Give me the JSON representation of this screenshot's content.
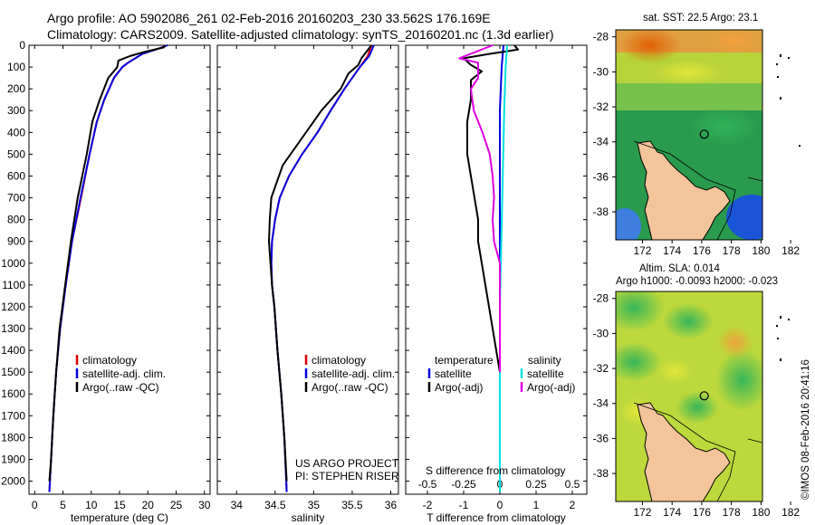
{
  "header": {
    "title_line1": "Argo profile: AO 5902086_261 02-Feb-2016 20160203_230 33.562S 176.169E",
    "title_line2": "Climatology: CARS2009. Satellite-adjusted climatology: synTS_20160201.nc (1.3d earlier)"
  },
  "maps": {
    "sst_title": "sat. SST: 22.5 Argo: 23.1",
    "sla_title1": "Altim. SLA: 0.014",
    "sla_title2": "Argo h1000: -0.0093 h2000: -0.023",
    "lat_ticks": [
      "-28",
      "-30",
      "-32",
      "-34",
      "-36",
      "-38"
    ],
    "lon_ticks": [
      "172",
      "174",
      "176",
      "178",
      "180",
      "182"
    ],
    "float_lon": 176.169,
    "float_lat": -33.562
  },
  "footer": {
    "imos_stamp": "©IMOS 08-Feb-2016 20:41:16",
    "project_line1": "US ARGO PROJECT",
    "project_line2": "PI: STEPHEN RISER"
  },
  "chart_data": [
    {
      "type": "line",
      "name": "temperature",
      "xlabel": "temperature (deg C)",
      "ylabel": "",
      "xlim": [
        -1,
        31
      ],
      "ylim": [
        2060,
        0
      ],
      "xticks": [
        0,
        5,
        10,
        15,
        20,
        25,
        30
      ],
      "yticks": [
        0,
        100,
        200,
        300,
        400,
        500,
        600,
        700,
        800,
        900,
        1000,
        1100,
        1200,
        1300,
        1400,
        1500,
        1600,
        1700,
        1800,
        1900,
        2000
      ],
      "legend": [
        "climatology",
        "satellite-adj. clim.",
        "Argo(..raw -QC)"
      ],
      "series": [
        {
          "name": "climatology",
          "color": "#e00000",
          "points": [
            [
              23.2,
              0
            ],
            [
              22.5,
              10
            ],
            [
              19,
              40
            ],
            [
              16.5,
              80
            ],
            [
              15.5,
              100
            ],
            [
              14,
              150
            ],
            [
              12.3,
              250
            ],
            [
              11,
              350
            ],
            [
              9.7,
              500
            ],
            [
              8.2,
              700
            ],
            [
              6.6,
              900
            ],
            [
              5.5,
              1100
            ],
            [
              4.5,
              1300
            ],
            [
              3.8,
              1500
            ],
            [
              3.3,
              1700
            ],
            [
              2.9,
              1900
            ],
            [
              2.6,
              2050
            ]
          ]
        },
        {
          "name": "satellite-adj. clim.",
          "color": "#0000e0",
          "points": [
            [
              23.5,
              0
            ],
            [
              22.5,
              10
            ],
            [
              19,
              40
            ],
            [
              16.5,
              80
            ],
            [
              15.5,
              100
            ],
            [
              14,
              150
            ],
            [
              12.3,
              250
            ],
            [
              11,
              350
            ],
            [
              9.7,
              500
            ],
            [
              8.1,
              700
            ],
            [
              6.6,
              900
            ],
            [
              5.5,
              1100
            ],
            [
              4.5,
              1300
            ],
            [
              3.8,
              1500
            ],
            [
              3.3,
              1700
            ],
            [
              2.9,
              1900
            ],
            [
              2.6,
              2050
            ]
          ]
        },
        {
          "name": "Argo(..raw -QC)",
          "color": "#000000",
          "points": [
            [
              23,
              0
            ],
            [
              22.8,
              10
            ],
            [
              19.5,
              30
            ],
            [
              16.8,
              50
            ],
            [
              14.8,
              70
            ],
            [
              14.6,
              100
            ],
            [
              13,
              150
            ],
            [
              11.5,
              250
            ],
            [
              10.2,
              350
            ],
            [
              9.2,
              500
            ],
            [
              7.6,
              700
            ],
            [
              6.4,
              900
            ],
            [
              5.4,
              1100
            ],
            [
              4.4,
              1300
            ],
            [
              3.8,
              1500
            ],
            [
              3.3,
              1700
            ],
            [
              2.9,
              1900
            ],
            [
              2.6,
              2000
            ]
          ]
        }
      ]
    },
    {
      "type": "line",
      "name": "salinity",
      "xlabel": "salinity",
      "ylabel": "",
      "xlim": [
        33.75,
        36.1
      ],
      "ylim": [
        2060,
        0
      ],
      "xticks": [
        34,
        34.5,
        35,
        35.5,
        36
      ],
      "legend": [
        "climatology",
        "satellite-adj. clim.",
        "Argo(..raw -QC)"
      ],
      "series": [
        {
          "name": "climatology",
          "color": "#e00000",
          "points": [
            [
              35.75,
              0
            ],
            [
              35.7,
              50
            ],
            [
              35.6,
              100
            ],
            [
              35.4,
              200
            ],
            [
              35.22,
              300
            ],
            [
              35.05,
              400
            ],
            [
              34.85,
              500
            ],
            [
              34.68,
              600
            ],
            [
              34.56,
              700
            ],
            [
              34.5,
              800
            ],
            [
              34.46,
              900
            ],
            [
              34.45,
              1000
            ],
            [
              34.46,
              1100
            ],
            [
              34.49,
              1200
            ],
            [
              34.53,
              1400
            ],
            [
              34.58,
              1600
            ],
            [
              34.62,
              1800
            ],
            [
              34.65,
              2050
            ]
          ]
        },
        {
          "name": "satellite-adj. clim.",
          "color": "#0000e0",
          "points": [
            [
              35.78,
              0
            ],
            [
              35.72,
              50
            ],
            [
              35.6,
              100
            ],
            [
              35.4,
              200
            ],
            [
              35.22,
              300
            ],
            [
              35.05,
              400
            ],
            [
              34.85,
              500
            ],
            [
              34.68,
              600
            ],
            [
              34.56,
              700
            ],
            [
              34.5,
              800
            ],
            [
              34.46,
              900
            ],
            [
              34.45,
              1000
            ],
            [
              34.46,
              1100
            ],
            [
              34.49,
              1200
            ],
            [
              34.53,
              1400
            ],
            [
              34.58,
              1600
            ],
            [
              34.62,
              1800
            ],
            [
              34.65,
              2050
            ]
          ]
        },
        {
          "name": "Argo(..raw -QC)",
          "color": "#000000",
          "points": [
            [
              35.75,
              0
            ],
            [
              35.62,
              60
            ],
            [
              35.58,
              90
            ],
            [
              35.45,
              130
            ],
            [
              35.35,
              200
            ],
            [
              35.1,
              300
            ],
            [
              34.8,
              450
            ],
            [
              34.6,
              550
            ],
            [
              34.5,
              650
            ],
            [
              34.45,
              700
            ],
            [
              34.43,
              800
            ],
            [
              34.42,
              900
            ],
            [
              34.44,
              1000
            ],
            [
              34.46,
              1100
            ],
            [
              34.49,
              1200
            ],
            [
              34.53,
              1400
            ],
            [
              34.58,
              1600
            ],
            [
              34.62,
              1800
            ],
            [
              34.65,
              2000
            ]
          ]
        }
      ]
    },
    {
      "type": "line",
      "name": "difference from climatology",
      "xlabel": "T difference from climatology",
      "xlabel_top": "S difference from climatology",
      "ylabel": "",
      "xlim": [
        -2.6,
        2.4
      ],
      "ylim": [
        2060,
        0
      ],
      "xticks": [
        -2,
        -1,
        0,
        1,
        2
      ],
      "s_ticks": [
        -0.5,
        -0.25,
        0,
        0.25,
        0.5
      ],
      "s_tick_labels": [
        "-0.5",
        "-0.25",
        "0",
        "0.25",
        "0.5"
      ],
      "legend_left_title": "temperature",
      "legend_right_title": "salinity",
      "legend": [
        "satellite",
        "Argo(-adj)",
        "satellite",
        "Argo(-adj)"
      ],
      "series": [
        {
          "name": "satellite",
          "group": "temperature",
          "color": "#0000e0",
          "points": [
            [
              0.1,
              0
            ],
            [
              0.05,
              100
            ],
            [
              0,
              300
            ],
            [
              0,
              600
            ],
            [
              0,
              1000
            ],
            [
              0,
              1500
            ],
            [
              0,
              2050
            ]
          ]
        },
        {
          "name": "Argo(-adj)",
          "group": "temperature",
          "color": "#000000",
          "points": [
            [
              0.4,
              0
            ],
            [
              0.5,
              20
            ],
            [
              -0.3,
              40
            ],
            [
              -1,
              60
            ],
            [
              -0.8,
              90
            ],
            [
              -0.5,
              120
            ],
            [
              -0.8,
              160
            ],
            [
              -0.8,
              250
            ],
            [
              -0.9,
              350
            ],
            [
              -0.9,
              500
            ],
            [
              -0.8,
              600
            ],
            [
              -0.7,
              700
            ],
            [
              -0.6,
              800
            ],
            [
              -0.6,
              900
            ],
            [
              -0.5,
              1000
            ],
            [
              -0.4,
              1100
            ],
            [
              -0.3,
              1200
            ],
            [
              -0.2,
              1300
            ],
            [
              -0.1,
              1400
            ],
            [
              0,
              1500
            ],
            [
              0,
              1700
            ],
            [
              0,
              2000
            ]
          ]
        },
        {
          "name": "satellite",
          "group": "salinity",
          "color": "#00e0e0",
          "points": [
            [
              0.05,
              0
            ],
            [
              0.04,
              100
            ],
            [
              0.03,
              300
            ],
            [
              0.02,
              600
            ],
            [
              0.01,
              900
            ],
            [
              0,
              1200
            ],
            [
              0,
              1500
            ],
            [
              0,
              2050
            ]
          ]
        },
        {
          "name": "Argo(-adj)",
          "group": "salinity",
          "color": "#e000e0",
          "points": [
            [
              -0.05,
              0
            ],
            [
              -0.28,
              60
            ],
            [
              -0.15,
              80
            ],
            [
              -0.15,
              150
            ],
            [
              -0.2,
              200
            ],
            [
              -0.18,
              300
            ],
            [
              -0.12,
              400
            ],
            [
              -0.07,
              500
            ],
            [
              -0.05,
              600
            ],
            [
              -0.04,
              700
            ],
            [
              -0.05,
              800
            ],
            [
              -0.04,
              900
            ],
            [
              0,
              1000
            ],
            [
              0,
              1500
            ]
          ]
        }
      ]
    }
  ]
}
